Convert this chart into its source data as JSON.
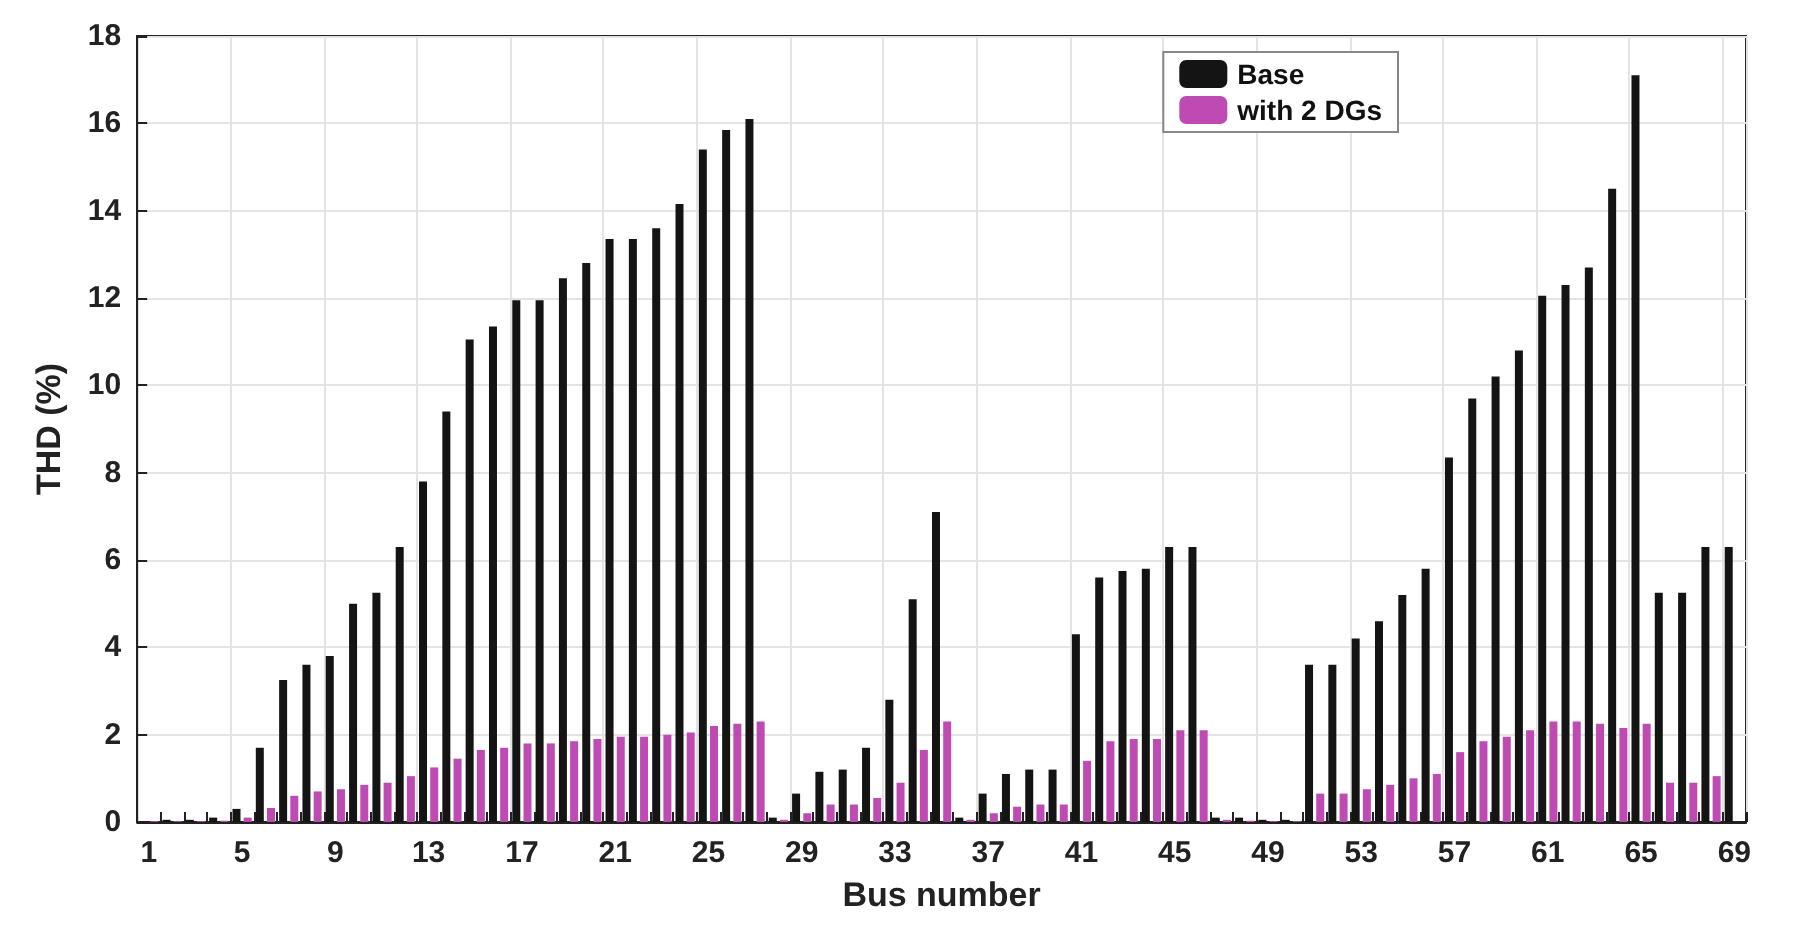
{
  "chart_data": {
    "type": "bar",
    "xlabel": "Bus number",
    "ylabel": "THD (%)",
    "categories": [
      "1",
      null,
      null,
      null,
      "5",
      null,
      null,
      null,
      "9",
      null,
      null,
      null,
      "13",
      null,
      null,
      null,
      "17",
      null,
      null,
      null,
      "21",
      null,
      null,
      null,
      "25",
      null,
      null,
      null,
      "29",
      null,
      null,
      null,
      "33",
      null,
      null,
      null,
      "37",
      null,
      null,
      null,
      "41",
      null,
      null,
      null,
      "45",
      null,
      null,
      null,
      "49",
      null,
      null,
      null,
      "53",
      null,
      null,
      null,
      "57",
      null,
      null,
      null,
      "61",
      null,
      null,
      null,
      "65",
      null,
      null,
      null,
      "69"
    ],
    "series": [
      {
        "name": "Base",
        "color": "#141414",
        "values": [
          null,
          0.05,
          0.05,
          0.1,
          0.3,
          1.7,
          3.25,
          3.6,
          3.8,
          5.0,
          5.25,
          6.3,
          7.8,
          9.4,
          11.05,
          11.35,
          11.95,
          11.95,
          12.45,
          12.8,
          13.35,
          13.35,
          13.6,
          14.15,
          15.4,
          15.85,
          16.1,
          0.1,
          0.65,
          1.15,
          1.2,
          1.7,
          2.8,
          5.1,
          7.1,
          0.1,
          0.65,
          1.1,
          1.2,
          1.2,
          4.3,
          5.6,
          5.75,
          5.8,
          6.3,
          6.3,
          0.1,
          0.1,
          0.05,
          0.05,
          3.6,
          3.6,
          4.2,
          4.6,
          5.2,
          5.8,
          8.35,
          9.7,
          10.2,
          10.8,
          12.05,
          12.3,
          12.7,
          14.5,
          17.1,
          5.25,
          5.25,
          6.3,
          6.3
        ]
      },
      {
        "name": "with 2 DGs",
        "color": "#be4ab4",
        "values": [
          0.02,
          0.02,
          0.02,
          0.03,
          0.1,
          0.32,
          0.6,
          0.7,
          0.75,
          0.85,
          0.9,
          1.05,
          1.25,
          1.45,
          1.65,
          1.7,
          1.8,
          1.8,
          1.85,
          1.9,
          1.95,
          1.95,
          2.0,
          2.05,
          2.2,
          2.25,
          2.3,
          0.05,
          0.2,
          0.4,
          0.4,
          0.55,
          0.9,
          1.65,
          2.3,
          0.05,
          0.2,
          0.35,
          0.4,
          0.4,
          1.4,
          1.85,
          1.9,
          1.9,
          2.1,
          2.1,
          0.05,
          0.03,
          0.02,
          0.02,
          0.65,
          0.65,
          0.75,
          0.85,
          1.0,
          1.1,
          1.6,
          1.85,
          1.95,
          2.1,
          2.3,
          2.3,
          2.25,
          2.15,
          2.25,
          0.9,
          0.9,
          1.05,
          null
        ]
      }
    ],
    "ylim": [
      0,
      18
    ],
    "yticks": [
      0,
      2,
      4,
      6,
      8,
      10,
      12,
      14,
      16,
      18
    ],
    "grid": true,
    "legend": "top right"
  }
}
